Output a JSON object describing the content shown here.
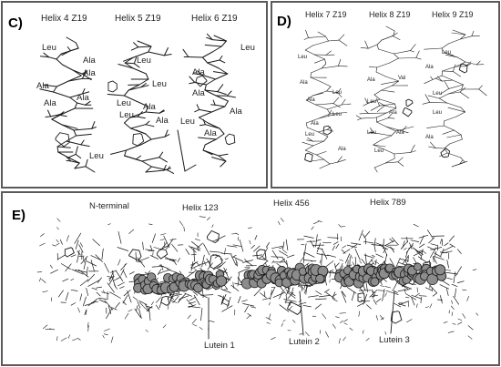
{
  "figure": {
    "colors": {
      "frame": "#5a5a5a",
      "stroke": "#1a1a1a",
      "sphere_fill": "#8c8c8c"
    },
    "panel_c": {
      "letter": "C)",
      "titles": [
        "Helix 4 Z19",
        "Helix 5 Z19",
        "Helix 6 Z19"
      ],
      "residues": {
        "helix4": [
          "Leu",
          "Ala",
          "Ala",
          "Ala",
          "Ala",
          "Ala",
          "Leu"
        ],
        "helix5": [
          "Leu",
          "Leu",
          "Leu",
          "Ala",
          "Leu",
          "Ala"
        ],
        "helix6": [
          "Leu",
          "Ala",
          "Ala",
          "Ala",
          "Leu",
          "Ala"
        ]
      }
    },
    "panel_d": {
      "letter": "D)",
      "titles": [
        "Helix 7 Z19",
        "Helix 8 Z19",
        "Helix 9 Z19"
      ],
      "residues": {
        "helix7": [
          "Leu",
          "Ala",
          "Leu",
          "Ala",
          "Leu",
          "Ala",
          "Leu",
          "Ala"
        ],
        "helix8": [
          "Ala",
          "Val",
          "Leu",
          "Ala",
          "Leu",
          "Ala",
          "Leu"
        ],
        "helix9": [
          "Leu",
          "Ala",
          "Leu",
          "Leu",
          "Ala"
        ]
      }
    },
    "panel_e": {
      "letter": "E)",
      "segment_labels": [
        "N-terminal",
        "Helix 123",
        "Helix 456",
        "Helix 789"
      ],
      "ligand_labels": [
        "Lutein 1",
        "Lutein 2",
        "Lutein 3"
      ]
    }
  }
}
